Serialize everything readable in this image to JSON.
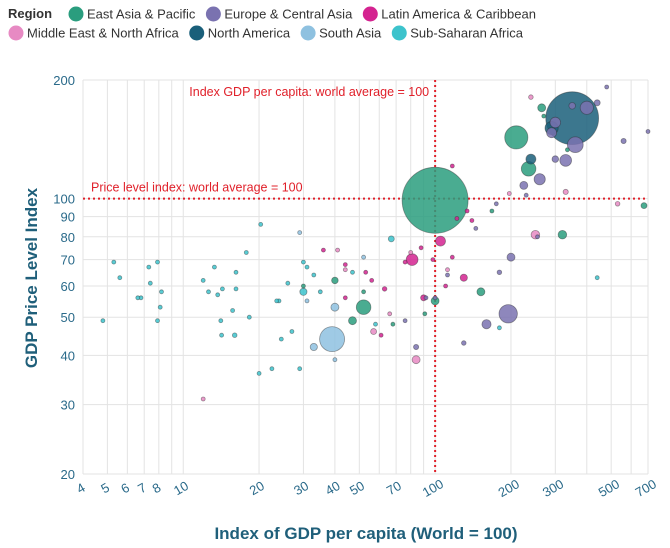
{
  "chart_data": {
    "type": "scatter",
    "title": "",
    "xlabel": "Index of GDP per capita (World = 100)",
    "ylabel": "GDP Price Level Index",
    "x_scale": "log",
    "y_scale": "log",
    "xlim": [
      4,
      700
    ],
    "ylim": [
      20,
      200
    ],
    "x_ticks": [
      4,
      5,
      6,
      7,
      8,
      10,
      20,
      30,
      40,
      50,
      70,
      100,
      200,
      300,
      500,
      700
    ],
    "y_ticks": [
      20,
      30,
      40,
      50,
      60,
      70,
      80,
      90,
      100,
      200
    ],
    "grid": true,
    "legend": {
      "title": "Region",
      "placement": "top-left",
      "entries": [
        {
          "name": "East Asia & Pacific",
          "color": "#2a9d7e"
        },
        {
          "name": "Europe & Central Asia",
          "color": "#7a72b0"
        },
        {
          "name": "Latin America & Caribbean",
          "color": "#d42390"
        },
        {
          "name": "Middle East & North Africa",
          "color": "#e78ac3"
        },
        {
          "name": "North America",
          "color": "#1a5f7a"
        },
        {
          "name": "South Asia",
          "color": "#8ec1e0"
        },
        {
          "name": "Sub-Saharan Africa",
          "color": "#3cc3cc"
        }
      ]
    },
    "reference_lines": [
      {
        "axis": "x",
        "value": 100,
        "label": "Index GDP per capita: world average = 100",
        "color": "#e0202a"
      },
      {
        "axis": "y",
        "value": 100,
        "label": "Price level index: world average = 100",
        "color": "#e0202a"
      }
    ],
    "series": [
      {
        "name": "East Asia & Pacific",
        "points": [
          {
            "x": 100,
            "y": 99,
            "size": 100
          },
          {
            "x": 210,
            "y": 143,
            "size": 35
          },
          {
            "x": 235,
            "y": 119,
            "size": 22
          },
          {
            "x": 52,
            "y": 53,
            "size": 22
          },
          {
            "x": 152,
            "y": 58,
            "size": 12
          },
          {
            "x": 320,
            "y": 81,
            "size": 13
          },
          {
            "x": 265,
            "y": 170,
            "size": 12
          },
          {
            "x": 47,
            "y": 49,
            "size": 12
          },
          {
            "x": 675,
            "y": 96,
            "size": 9
          },
          {
            "x": 40,
            "y": 62,
            "size": 10
          },
          {
            "x": 100,
            "y": 55,
            "size": 12
          },
          {
            "x": 270,
            "y": 162,
            "size": 6
          },
          {
            "x": 52,
            "y": 58,
            "size": 5
          },
          {
            "x": 30,
            "y": 60,
            "size": 5
          },
          {
            "x": 335,
            "y": 133,
            "size": 5
          },
          {
            "x": 68,
            "y": 48,
            "size": 4
          },
          {
            "x": 91,
            "y": 51,
            "size": 4
          },
          {
            "x": 168,
            "y": 93,
            "size": 4
          }
        ]
      },
      {
        "name": "Europe & Central Asia",
        "points": [
          {
            "x": 195,
            "y": 51,
            "size": 28
          },
          {
            "x": 360,
            "y": 137,
            "size": 24
          },
          {
            "x": 330,
            "y": 125,
            "size": 18
          },
          {
            "x": 400,
            "y": 170,
            "size": 20
          },
          {
            "x": 260,
            "y": 112,
            "size": 17
          },
          {
            "x": 290,
            "y": 147,
            "size": 15
          },
          {
            "x": 300,
            "y": 156,
            "size": 16
          },
          {
            "x": 160,
            "y": 48,
            "size": 14
          },
          {
            "x": 200,
            "y": 71,
            "size": 12
          },
          {
            "x": 225,
            "y": 108,
            "size": 12
          },
          {
            "x": 300,
            "y": 126,
            "size": 10
          },
          {
            "x": 180,
            "y": 65,
            "size": 7
          },
          {
            "x": 440,
            "y": 175,
            "size": 9
          },
          {
            "x": 350,
            "y": 172,
            "size": 10
          },
          {
            "x": 560,
            "y": 140,
            "size": 8
          },
          {
            "x": 100,
            "y": 56,
            "size": 6
          },
          {
            "x": 84,
            "y": 42,
            "size": 8
          },
          {
            "x": 130,
            "y": 43,
            "size": 7
          },
          {
            "x": 255,
            "y": 80,
            "size": 6
          },
          {
            "x": 145,
            "y": 84,
            "size": 6
          },
          {
            "x": 175,
            "y": 97,
            "size": 6
          },
          {
            "x": 230,
            "y": 102,
            "size": 6
          },
          {
            "x": 480,
            "y": 192,
            "size": 5
          },
          {
            "x": 700,
            "y": 148,
            "size": 6
          },
          {
            "x": 112,
            "y": 64,
            "size": 5
          },
          {
            "x": 76,
            "y": 49,
            "size": 4
          },
          {
            "x": 92,
            "y": 56,
            "size": 4
          }
        ]
      },
      {
        "name": "Latin America & Caribbean",
        "points": [
          {
            "x": 81,
            "y": 70,
            "size": 18
          },
          {
            "x": 105,
            "y": 78,
            "size": 15
          },
          {
            "x": 130,
            "y": 63,
            "size": 11
          },
          {
            "x": 90,
            "y": 56,
            "size": 9
          },
          {
            "x": 63,
            "y": 59,
            "size": 7
          },
          {
            "x": 76,
            "y": 69,
            "size": 6
          },
          {
            "x": 140,
            "y": 88,
            "size": 6
          },
          {
            "x": 117,
            "y": 71,
            "size": 5
          },
          {
            "x": 56,
            "y": 62,
            "size": 5
          },
          {
            "x": 53,
            "y": 65,
            "size": 4
          },
          {
            "x": 44,
            "y": 68,
            "size": 4
          },
          {
            "x": 36,
            "y": 74,
            "size": 4
          },
          {
            "x": 44,
            "y": 56,
            "size": 4
          },
          {
            "x": 110,
            "y": 60,
            "size": 4
          },
          {
            "x": 122,
            "y": 89,
            "size": 4
          },
          {
            "x": 88,
            "y": 75,
            "size": 4
          },
          {
            "x": 117,
            "y": 121,
            "size": 4
          },
          {
            "x": 61,
            "y": 45,
            "size": 4
          },
          {
            "x": 134,
            "y": 93,
            "size": 4
          },
          {
            "x": 98,
            "y": 70,
            "size": 4
          }
        ]
      },
      {
        "name": "Middle East & North Africa",
        "points": [
          {
            "x": 250,
            "y": 81,
            "size": 13
          },
          {
            "x": 84,
            "y": 39,
            "size": 12
          },
          {
            "x": 57,
            "y": 46,
            "size": 9
          },
          {
            "x": 330,
            "y": 104,
            "size": 8
          },
          {
            "x": 240,
            "y": 181,
            "size": 7
          },
          {
            "x": 530,
            "y": 97,
            "size": 7
          },
          {
            "x": 44,
            "y": 66,
            "size": 6
          },
          {
            "x": 41,
            "y": 74,
            "size": 5
          },
          {
            "x": 112,
            "y": 66,
            "size": 4
          },
          {
            "x": 12,
            "y": 31,
            "size": 4
          },
          {
            "x": 80,
            "y": 73,
            "size": 4
          },
          {
            "x": 66,
            "y": 51,
            "size": 4
          },
          {
            "x": 197,
            "y": 103,
            "size": 4
          }
        ]
      },
      {
        "name": "North America",
        "points": [
          {
            "x": 350,
            "y": 160,
            "size": 80
          },
          {
            "x": 290,
            "y": 151,
            "size": 20
          },
          {
            "x": 240,
            "y": 126,
            "size": 15
          }
        ]
      },
      {
        "name": "South Asia",
        "points": [
          {
            "x": 39,
            "y": 44,
            "size": 38
          },
          {
            "x": 40,
            "y": 53,
            "size": 12
          },
          {
            "x": 33,
            "y": 42,
            "size": 11
          },
          {
            "x": 40,
            "y": 39,
            "size": 5
          },
          {
            "x": 31,
            "y": 55,
            "size": 4
          },
          {
            "x": 52,
            "y": 71,
            "size": 4
          },
          {
            "x": 29,
            "y": 82,
            "size": 4
          }
        ]
      },
      {
        "name": "Sub-Saharan Africa",
        "points": [
          {
            "x": 30,
            "y": 58,
            "size": 11
          },
          {
            "x": 67,
            "y": 79,
            "size": 9
          },
          {
            "x": 16,
            "y": 45,
            "size": 7
          },
          {
            "x": 4.8,
            "y": 49,
            "size": 4
          },
          {
            "x": 5.3,
            "y": 69,
            "size": 4
          },
          {
            "x": 5.6,
            "y": 63,
            "size": 4
          },
          {
            "x": 6.8,
            "y": 56,
            "size": 4
          },
          {
            "x": 7.3,
            "y": 67,
            "size": 4
          },
          {
            "x": 7.4,
            "y": 61,
            "size": 4
          },
          {
            "x": 7.9,
            "y": 69,
            "size": 4
          },
          {
            "x": 7.9,
            "y": 49,
            "size": 4
          },
          {
            "x": 8.1,
            "y": 53,
            "size": 4
          },
          {
            "x": 8.2,
            "y": 58,
            "size": 4
          },
          {
            "x": 12,
            "y": 62,
            "size": 4
          },
          {
            "x": 12.6,
            "y": 58,
            "size": 4
          },
          {
            "x": 13.3,
            "y": 67,
            "size": 4
          },
          {
            "x": 13.7,
            "y": 57,
            "size": 4
          },
          {
            "x": 14.2,
            "y": 45,
            "size": 4
          },
          {
            "x": 14.3,
            "y": 59,
            "size": 4
          },
          {
            "x": 14.1,
            "y": 49,
            "size": 4
          },
          {
            "x": 15.7,
            "y": 52,
            "size": 4
          },
          {
            "x": 16.2,
            "y": 65,
            "size": 4
          },
          {
            "x": 16.2,
            "y": 59,
            "size": 4
          },
          {
            "x": 17.8,
            "y": 73,
            "size": 4
          },
          {
            "x": 18.3,
            "y": 50,
            "size": 4
          },
          {
            "x": 20,
            "y": 36,
            "size": 4
          },
          {
            "x": 20.3,
            "y": 86,
            "size": 4
          },
          {
            "x": 22.5,
            "y": 37,
            "size": 4
          },
          {
            "x": 24,
            "y": 55,
            "size": 4
          },
          {
            "x": 24.5,
            "y": 44,
            "size": 4
          },
          {
            "x": 26,
            "y": 61,
            "size": 4
          },
          {
            "x": 27,
            "y": 46,
            "size": 4
          },
          {
            "x": 29,
            "y": 37,
            "size": 4
          },
          {
            "x": 31,
            "y": 67,
            "size": 4
          },
          {
            "x": 33,
            "y": 64,
            "size": 4
          },
          {
            "x": 47,
            "y": 65,
            "size": 4
          },
          {
            "x": 35,
            "y": 58,
            "size": 4
          },
          {
            "x": 23.5,
            "y": 55,
            "size": 4
          },
          {
            "x": 30,
            "y": 69,
            "size": 4
          },
          {
            "x": 6.6,
            "y": 56,
            "size": 4
          },
          {
            "x": 440,
            "y": 63,
            "size": 4
          },
          {
            "x": 180,
            "y": 47,
            "size": 4
          },
          {
            "x": 58,
            "y": 48,
            "size": 4
          }
        ]
      }
    ]
  }
}
